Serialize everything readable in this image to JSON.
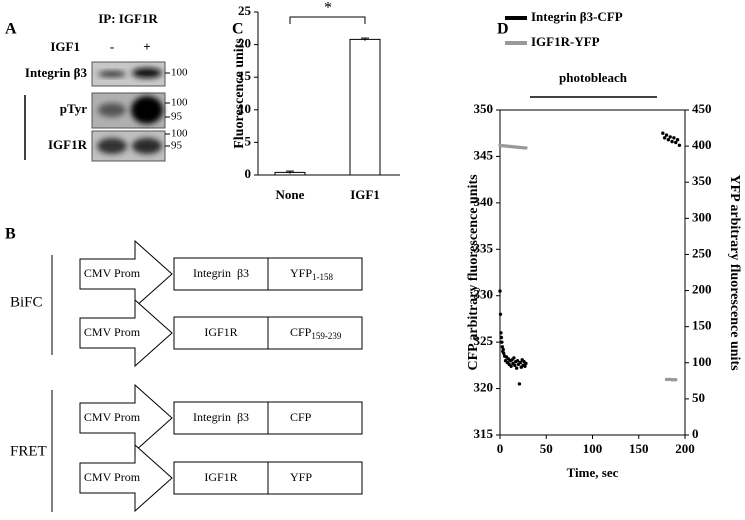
{
  "panel_a": {
    "panel": "A",
    "title": "IP: IGF1R",
    "treatment": "IGF1",
    "lanes": [
      "-",
      "+"
    ],
    "rows": [
      {
        "label": "Integrin β3",
        "markers": [
          "100"
        ]
      },
      {
        "label": "pTyr",
        "markers": [
          "100",
          "95"
        ]
      },
      {
        "label": "IGF1R",
        "markers": [
          "100",
          "95"
        ]
      }
    ]
  },
  "panel_b": {
    "panel": "B",
    "groups": [
      {
        "name": "BiFC",
        "constructs": [
          {
            "promoter": "CMV Prom",
            "gene": "Integrin  β3",
            "tag": "YFP",
            "tag_sub": "1-158"
          },
          {
            "promoter": "CMV Prom",
            "gene": "IGF1R",
            "tag": "CFP",
            "tag_sub": "159-239"
          }
        ]
      },
      {
        "name": "FRET",
        "constructs": [
          {
            "promoter": "CMV Prom",
            "gene": "Integrin  β3",
            "tag": "CFP"
          },
          {
            "promoter": "CMV Prom",
            "gene": "IGF1R",
            "tag": "YFP"
          }
        ]
      }
    ]
  },
  "chart_data": [
    {
      "type": "bar",
      "panel": "C",
      "ylabel": "Fluorescence units",
      "annotation": "*",
      "categories": [
        "None",
        "IGF1"
      ],
      "values": [
        0.4,
        20.8
      ],
      "errors": [
        0.2,
        0.2
      ],
      "color": "#ffffff",
      "ylim": [
        0,
        25
      ],
      "yticks": [
        0,
        5,
        10,
        15,
        20,
        25
      ]
    },
    {
      "type": "scatter",
      "panel": "D",
      "xlabel": "Time, sec",
      "ylabel": "CFP arbitrary fluorescence units",
      "y2label": "YFP arbitrary fluorescence units",
      "annotation": "photobleach",
      "xlim": [
        0,
        200
      ],
      "xticks": [
        0,
        50,
        100,
        150,
        200
      ],
      "ylim": [
        315,
        350
      ],
      "yticks": [
        315,
        320,
        325,
        330,
        335,
        340,
        345,
        350
      ],
      "y2lim": [
        0,
        450
      ],
      "y2ticks": [
        0,
        50,
        100,
        150,
        200,
        250,
        300,
        350,
        400,
        450
      ],
      "series": [
        {
          "name": "Integrin β3-CFP",
          "color": "#000000",
          "axis": "y",
          "x": [
            0,
            0.5,
            1,
            1.5,
            2,
            2.5,
            3,
            3.5,
            4,
            5,
            6,
            7,
            8,
            9,
            10,
            11,
            12,
            13,
            14,
            15,
            16,
            17,
            18,
            19,
            20,
            21,
            22,
            23,
            24,
            25,
            26,
            27,
            28,
            176,
            178,
            180,
            182,
            184,
            186,
            188,
            190,
            192,
            194
          ],
          "values": [
            330.5,
            328,
            326,
            325.5,
            325,
            324.5,
            324,
            324.2,
            323.8,
            323.5,
            323,
            323.4,
            322.8,
            323.2,
            322.6,
            323,
            322.4,
            323.1,
            322.7,
            323.3,
            322.5,
            322.9,
            322.2,
            323,
            322.6,
            320.5,
            322.8,
            322.3,
            323.1,
            322.5,
            322.9,
            322.4,
            322.7,
            347.5,
            347,
            347.3,
            346.8,
            347.1,
            346.6,
            347,
            346.5,
            346.8,
            346.2
          ]
        },
        {
          "name": "IGF1R-YFP",
          "color": "#999999",
          "axis": "y2",
          "x": [
            0,
            2,
            4,
            6,
            8,
            10,
            12,
            14,
            16,
            18,
            20,
            22,
            24,
            26,
            28,
            180,
            182,
            184,
            186,
            188,
            190
          ],
          "values": [
            401,
            400.5,
            400.5,
            400,
            400,
            399.5,
            399.5,
            399,
            399,
            398.5,
            398.5,
            398,
            398,
            397.5,
            397.5,
            77,
            77,
            77,
            76.5,
            76.5,
            76.5
          ]
        }
      ]
    }
  ]
}
